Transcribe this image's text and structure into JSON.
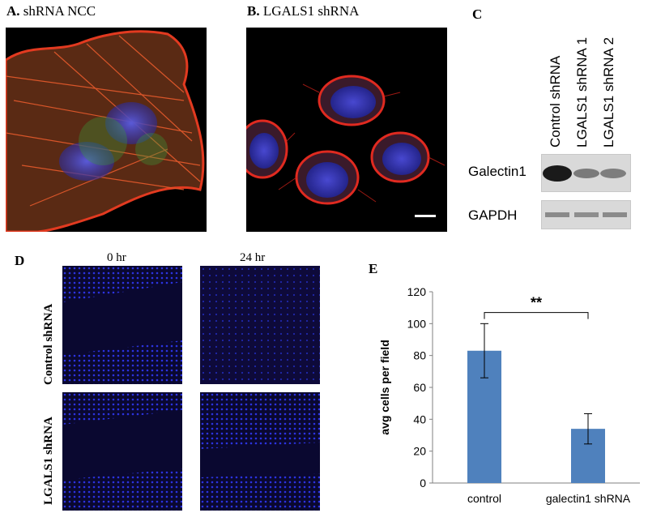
{
  "panels": {
    "a": {
      "letter": "A.",
      "title": "shRNA NCC"
    },
    "b": {
      "letter": "B.",
      "title": "LGALS1 shRNA"
    },
    "c": {
      "letter": "C",
      "lanes": [
        "Control shRNA",
        "LGALS1 shRNA 1",
        "LGALS1 shRNA 2"
      ],
      "rows": [
        "Galectin1",
        "GAPDH"
      ]
    },
    "d": {
      "letter": "D",
      "times": [
        "0 hr",
        "24 hr"
      ],
      "rows": [
        "Control shRNA",
        "LGALS1 shRNA"
      ]
    },
    "e": {
      "letter": "E",
      "significance": "**"
    }
  },
  "colors": {
    "bar": "#4f81bd",
    "nucleus": "#3a3ac8",
    "actin": "#e02a20",
    "wound_cells": "#2b33e0"
  },
  "chart_data": {
    "type": "bar",
    "categories": [
      "control",
      "galectin1 shRNA"
    ],
    "values": [
      83,
      34
    ],
    "errors": [
      17,
      9.5
    ],
    "ylabel": "avg cells per field",
    "xlabel": "",
    "title": "",
    "ylim": [
      0,
      120
    ],
    "yticks": [
      0,
      20,
      40,
      60,
      80,
      100,
      120
    ],
    "grid": false
  }
}
